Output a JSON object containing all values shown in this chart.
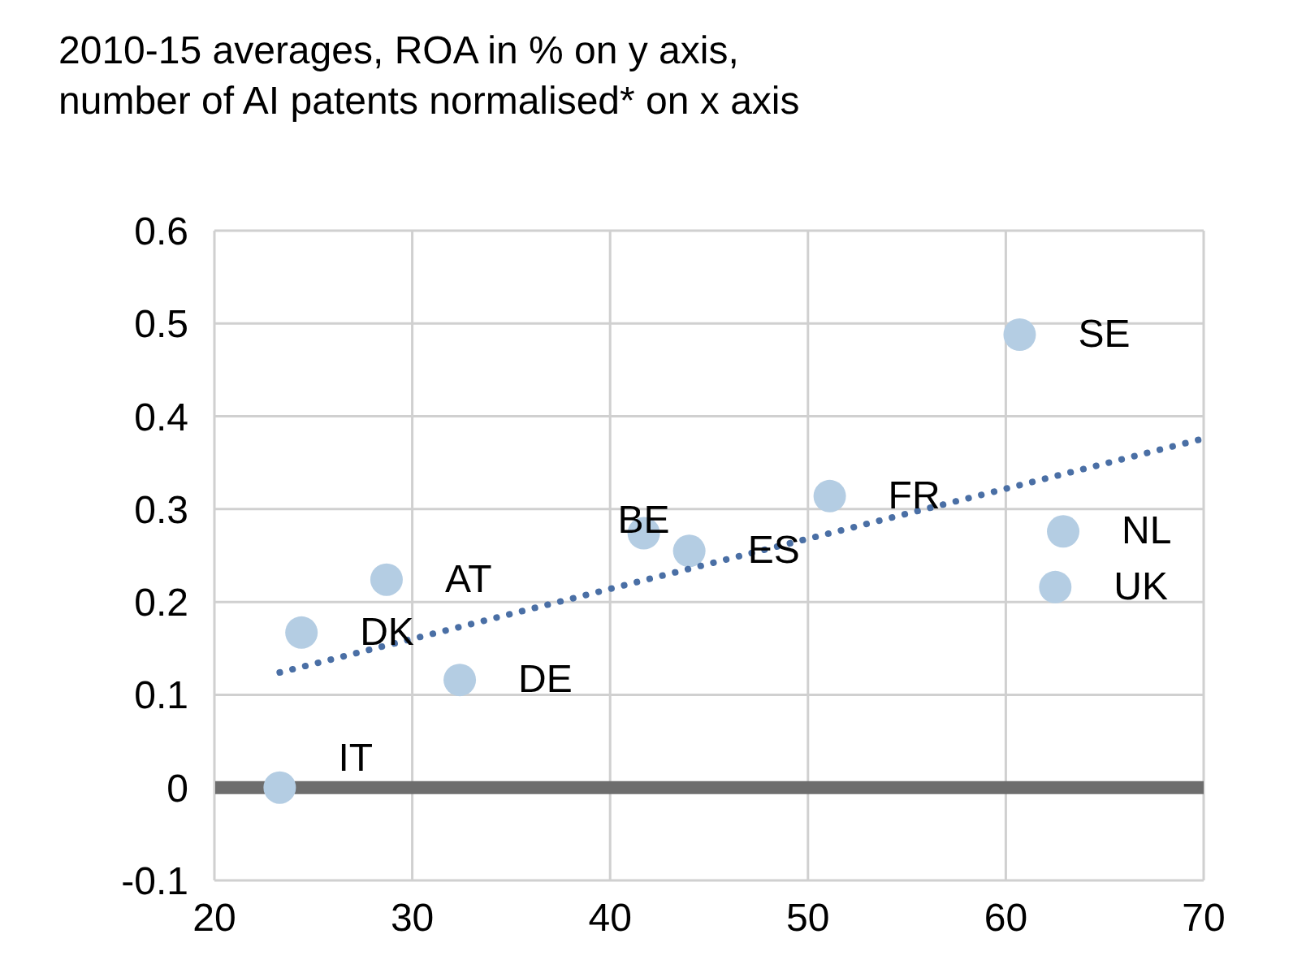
{
  "chart_data": {
    "type": "scatter",
    "title": "2010-15 averages, ROA in % on y axis,\nnumber of AI patents normalised* on x axis",
    "series": [
      {
        "marker": "circle",
        "color": "#b4cde3",
        "x": [
          23.3,
          24.4,
          28.7,
          32.4,
          41.7,
          44.0,
          51.1,
          60.7,
          62.9,
          62.5
        ],
        "values": [
          0.0,
          0.167,
          0.224,
          0.116,
          0.274,
          0.255,
          0.314,
          0.488,
          0.276,
          0.216
        ]
      },
      {
        "type": "line",
        "color": "#4a6fa5",
        "line_style": "dotted",
        "x": [
          23.3,
          70
        ],
        "values": [
          0.124,
          0.376
        ]
      }
    ],
    "annotations": [
      {
        "text": "IT",
        "x": 23.3,
        "y": 0.0
      },
      {
        "text": "DK",
        "x": 24.4,
        "y": 0.167
      },
      {
        "text": "AT",
        "x": 28.7,
        "y": 0.224
      },
      {
        "text": "DE",
        "x": 32.4,
        "y": 0.116
      },
      {
        "text": "BE",
        "x": 41.7,
        "y": 0.274
      },
      {
        "text": "ES",
        "x": 44.0,
        "y": 0.255
      },
      {
        "text": "FR",
        "x": 51.1,
        "y": 0.314
      },
      {
        "text": "SE",
        "x": 60.7,
        "y": 0.488
      },
      {
        "text": "NL",
        "x": 62.9,
        "y": 0.276
      },
      {
        "text": "UK",
        "x": 62.5,
        "y": 0.216
      }
    ],
    "ref_lines": [
      {
        "axis": "y",
        "value": 0,
        "color": "#6d6d6d"
      }
    ],
    "xlim": [
      20,
      70
    ],
    "xticks": [
      20,
      30,
      40,
      50,
      60,
      70
    ],
    "ylim": [
      -0.1,
      0.6
    ],
    "yticks": [
      -0.1,
      0,
      0.1,
      0.2,
      0.3,
      0.4,
      0.5,
      0.6
    ],
    "grid": true
  }
}
